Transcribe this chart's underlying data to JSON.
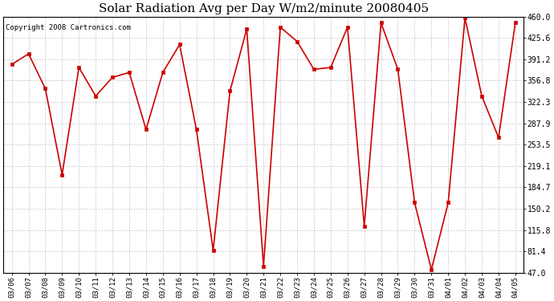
{
  "title": "Solar Radiation Avg per Day W/m2/minute 20080405",
  "copyright": "Copyright 2008 Cartronics.com",
  "dates": [
    "03/06",
    "03/07",
    "03/08",
    "03/09",
    "03/10",
    "03/11",
    "03/12",
    "03/13",
    "03/14",
    "03/15",
    "03/16",
    "03/17",
    "03/18",
    "03/19",
    "03/20",
    "03/21",
    "03/22",
    "03/23",
    "03/24",
    "03/25",
    "03/26",
    "03/27",
    "03/28",
    "03/29",
    "03/30",
    "03/31",
    "04/01",
    "04/02",
    "04/03",
    "04/04",
    "04/05"
  ],
  "values": [
    383,
    400,
    344,
    205,
    378,
    332,
    362,
    370,
    278,
    370,
    415,
    278,
    83,
    340,
    440,
    57,
    443,
    420,
    375,
    378,
    443,
    122,
    450,
    375,
    160,
    52,
    160,
    458,
    332,
    265,
    450
  ],
  "y_min": 47.0,
  "y_max": 460.0,
  "y_ticks": [
    47.0,
    81.4,
    115.8,
    150.2,
    184.7,
    219.1,
    253.5,
    287.9,
    322.3,
    356.8,
    391.2,
    425.6,
    460.0
  ],
  "line_color": "#cc0000",
  "marker_color": "#cc0000",
  "bg_color": "#ffffff",
  "grid_color": "#c8c8c8",
  "title_fontsize": 11,
  "copyright_fontsize": 6.5,
  "tick_fontsize": 6.5,
  "ytick_fontsize": 7
}
